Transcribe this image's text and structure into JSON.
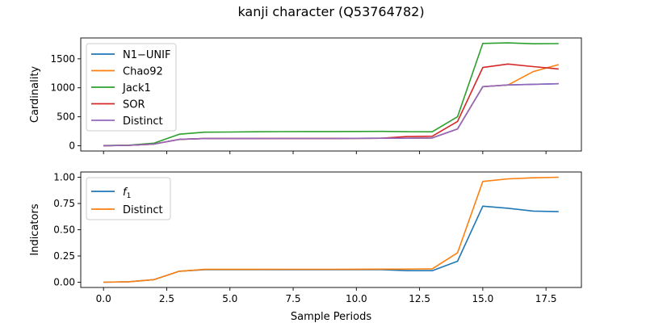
{
  "figure": {
    "title": "kanji character (Q53764782)"
  },
  "chart_data": [
    {
      "type": "line",
      "ylabel": "Cardinality",
      "xlabel": "",
      "xlim": [
        -0.9,
        18.9
      ],
      "ylim": [
        -90,
        1860
      ],
      "xticks": [
        0.0,
        2.5,
        5.0,
        7.5,
        10.0,
        12.5,
        15.0,
        17.5
      ],
      "xtick_labels_visible": false,
      "yticks": [
        0,
        500,
        1000,
        1500
      ],
      "ytick_labels": [
        "0",
        "500",
        "1000",
        "1500"
      ],
      "grid": false,
      "legend": "upper-left",
      "x": [
        0,
        1,
        2,
        3,
        4,
        5,
        6,
        7,
        8,
        9,
        10,
        11,
        12,
        13,
        14,
        15,
        16,
        17,
        18
      ],
      "series": [
        {
          "name": "N1−UNIF",
          "color": "#1f77b4",
          "values": [
            2,
            8,
            30,
            110,
            125,
            125,
            125,
            126,
            126,
            126,
            128,
            130,
            130,
            135,
            290,
            1020,
            1050,
            1060,
            1070
          ]
        },
        {
          "name": "Chao92",
          "color": "#ff7f0e",
          "values": [
            2,
            8,
            30,
            110,
            125,
            125,
            125,
            126,
            126,
            126,
            128,
            130,
            130,
            135,
            290,
            1020,
            1050,
            1280,
            1400
          ]
        },
        {
          "name": "Jack1",
          "color": "#2ca02c",
          "values": [
            5,
            10,
            45,
            200,
            235,
            238,
            242,
            244,
            245,
            246,
            247,
            248,
            243,
            242,
            500,
            1765,
            1775,
            1760,
            1762
          ]
        },
        {
          "name": "SOR",
          "color": "#d62728",
          "values": [
            2,
            8,
            30,
            110,
            125,
            125,
            125,
            126,
            126,
            126,
            128,
            130,
            160,
            165,
            420,
            1350,
            1410,
            1365,
            1325
          ]
        },
        {
          "name": "Distinct",
          "color": "#9467bd",
          "values": [
            2,
            8,
            30,
            110,
            125,
            125,
            125,
            126,
            126,
            126,
            128,
            130,
            130,
            135,
            290,
            1020,
            1050,
            1060,
            1070
          ]
        }
      ]
    },
    {
      "type": "line",
      "ylabel": "Indicators",
      "xlabel": "Sample Periods",
      "xlim": [
        -0.9,
        18.9
      ],
      "ylim": [
        -0.05,
        1.05
      ],
      "xticks": [
        0.0,
        2.5,
        5.0,
        7.5,
        10.0,
        12.5,
        15.0,
        17.5
      ],
      "xtick_labels": [
        "0.0",
        "2.5",
        "5.0",
        "7.5",
        "10.0",
        "12.5",
        "15.0",
        "17.5"
      ],
      "yticks": [
        0.0,
        0.25,
        0.5,
        0.75,
        1.0
      ],
      "ytick_labels": [
        "0.00",
        "0.25",
        "0.50",
        "0.75",
        "1.00"
      ],
      "grid": false,
      "legend": "upper-left",
      "x": [
        0,
        1,
        2,
        3,
        4,
        5,
        6,
        7,
        8,
        9,
        10,
        11,
        12,
        13,
        14,
        15,
        16,
        17,
        18
      ],
      "series": [
        {
          "name": "f",
          "name_subscript": "1",
          "color": "#1f77b4",
          "values": [
            0.0,
            0.005,
            0.025,
            0.105,
            0.12,
            0.12,
            0.12,
            0.12,
            0.12,
            0.12,
            0.12,
            0.12,
            0.11,
            0.11,
            0.2,
            0.725,
            0.705,
            0.678,
            0.672
          ]
        },
        {
          "name": "Distinct",
          "color": "#ff7f0e",
          "values": [
            0.0,
            0.005,
            0.025,
            0.105,
            0.122,
            0.122,
            0.122,
            0.123,
            0.123,
            0.123,
            0.124,
            0.125,
            0.125,
            0.128,
            0.28,
            0.96,
            0.985,
            0.995,
            1.0
          ]
        }
      ]
    }
  ]
}
